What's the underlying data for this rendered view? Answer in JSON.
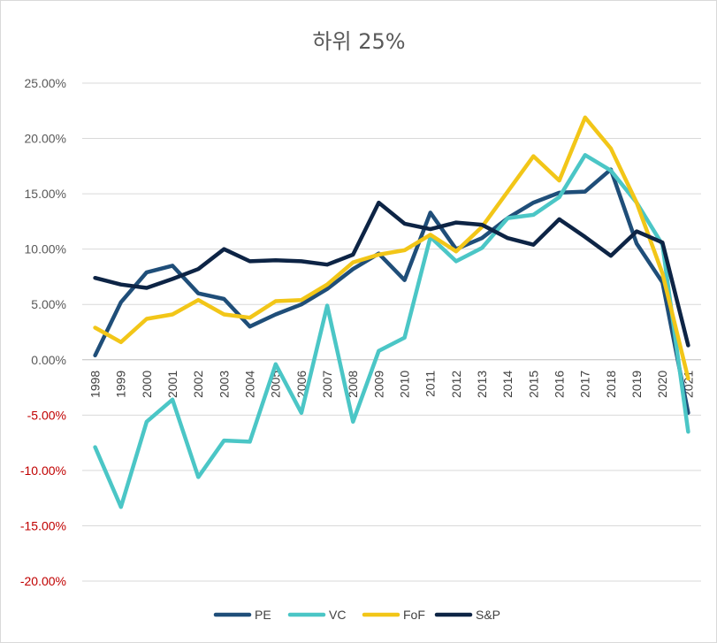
{
  "chart_data": {
    "type": "line",
    "title": "하위 25%",
    "xlabel": "",
    "ylabel": "",
    "categories": [
      "1998",
      "1999",
      "2000",
      "2001",
      "2002",
      "2003",
      "2004",
      "2005",
      "2006",
      "2007",
      "2008",
      "2009",
      "2010",
      "2011",
      "2012",
      "2013",
      "2014",
      "2015",
      "2016",
      "2017",
      "2018",
      "2019",
      "2020",
      "2021"
    ],
    "ylim": [
      -20,
      25
    ],
    "y_ticks": [
      {
        "value": 25,
        "label": "25.00%"
      },
      {
        "value": 20,
        "label": "20.00%"
      },
      {
        "value": 15,
        "label": "15.00%"
      },
      {
        "value": 10,
        "label": "10.00%"
      },
      {
        "value": 5,
        "label": "5.00%"
      },
      {
        "value": 0,
        "label": "0.00%"
      },
      {
        "value": -5,
        "label": "-5.00%"
      },
      {
        "value": -10,
        "label": "-10.00%"
      },
      {
        "value": -15,
        "label": "-15.00%"
      },
      {
        "value": -20,
        "label": "-20.00%"
      }
    ],
    "positive_tick_color": "#595959",
    "negative_tick_color": "#c00000",
    "gridlines": true,
    "legend_position": "bottom",
    "series": [
      {
        "name": "PE",
        "color": "#1f4e79",
        "values": [
          0.4,
          5.2,
          7.9,
          8.5,
          6.0,
          5.5,
          3.0,
          4.1,
          5.0,
          6.4,
          8.2,
          9.6,
          7.2,
          13.3,
          10.0,
          11.0,
          12.8,
          14.2,
          15.1,
          15.2,
          17.2,
          10.5,
          7.0,
          -4.8
        ]
      },
      {
        "name": "VC",
        "color": "#4bc6c6",
        "values": [
          -7.9,
          -13.3,
          -5.6,
          -3.6,
          -10.6,
          -7.3,
          -7.4,
          -0.4,
          -4.8,
          4.9,
          -5.6,
          0.8,
          2.0,
          11.1,
          8.9,
          10.1,
          12.8,
          13.1,
          14.7,
          18.5,
          17.1,
          14.2,
          10.4,
          -6.5
        ]
      },
      {
        "name": "FoF",
        "color": "#f2c618",
        "values": [
          2.9,
          1.6,
          3.7,
          4.1,
          5.4,
          4.1,
          3.8,
          5.3,
          5.4,
          6.8,
          8.8,
          9.5,
          9.9,
          11.3,
          9.8,
          12.0,
          15.2,
          18.4,
          16.2,
          21.9,
          19.1,
          14.2,
          7.8,
          -1.7
        ]
      },
      {
        "name": "S&P",
        "color": "#0d2445",
        "values": [
          7.4,
          6.8,
          6.5,
          7.3,
          8.2,
          10.0,
          8.9,
          9.0,
          8.9,
          8.6,
          9.5,
          14.2,
          12.3,
          11.8,
          12.4,
          12.2,
          11.0,
          10.4,
          12.7,
          11.1,
          9.4,
          11.6,
          10.6,
          1.3
        ]
      }
    ]
  }
}
